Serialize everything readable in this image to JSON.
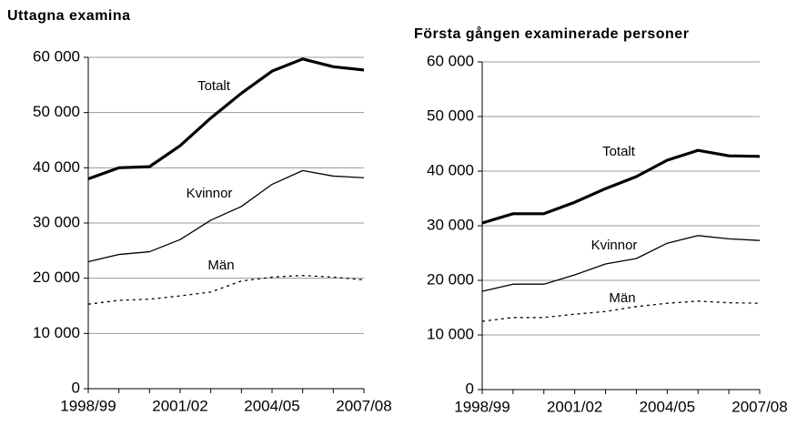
{
  "chart_data": [
    {
      "type": "line",
      "title": "Uttagna examina",
      "categories": [
        "1998/99",
        null,
        null,
        "2001/02",
        null,
        null,
        "2004/05",
        null,
        null,
        "2007/08"
      ],
      "series": [
        {
          "name": "Totalt",
          "color": "#000000",
          "values": [
            38000,
            40000,
            40200,
            44000,
            49000,
            53500,
            57500,
            59700,
            58300,
            57700
          ]
        },
        {
          "name": "Kvinnor",
          "color": "#000000",
          "values": [
            23000,
            24300,
            24800,
            27000,
            30500,
            33000,
            37000,
            39500,
            38500,
            38200
          ]
        },
        {
          "name": "Män",
          "color": "#000000",
          "values": [
            15300,
            16000,
            16200,
            16800,
            17500,
            19500,
            20200,
            20500,
            20200,
            19700
          ]
        }
      ],
      "ylim": [
        0,
        60000
      ],
      "yticks": [
        {
          "value": 0,
          "label": "0"
        },
        {
          "value": 10000,
          "label": "10 000"
        },
        {
          "value": 20000,
          "label": "20 000"
        },
        {
          "value": 30000,
          "label": "30 000"
        },
        {
          "value": 40000,
          "label": "40 000"
        },
        {
          "value": 50000,
          "label": "50 000"
        },
        {
          "value": 60000,
          "label": "60 000"
        }
      ],
      "grid": true
    },
    {
      "type": "line",
      "title": "Första gången examinerade personer",
      "categories": [
        "1998/99",
        null,
        null,
        "2001/02",
        null,
        null,
        "2004/05",
        null,
        null,
        "2007/08"
      ],
      "series": [
        {
          "name": "Totalt",
          "color": "#000000",
          "values": [
            30500,
            32200,
            32200,
            34300,
            36800,
            39000,
            42000,
            43800,
            42800,
            42700
          ]
        },
        {
          "name": "Kvinnor",
          "color": "#000000",
          "values": [
            18000,
            19300,
            19300,
            21000,
            23000,
            24000,
            26800,
            28200,
            27600,
            27300
          ]
        },
        {
          "name": "Män",
          "color": "#000000",
          "values": [
            12500,
            13200,
            13200,
            13800,
            14300,
            15200,
            15800,
            16200,
            15900,
            15800
          ]
        }
      ],
      "ylim": [
        0,
        60000
      ],
      "yticks": [
        {
          "value": 0,
          "label": "0"
        },
        {
          "value": 10000,
          "label": "10 000"
        },
        {
          "value": 20000,
          "label": "20 000"
        },
        {
          "value": 30000,
          "label": "30 000"
        },
        {
          "value": 40000,
          "label": "40 000"
        },
        {
          "value": 50000,
          "label": "50 000"
        },
        {
          "value": 60000,
          "label": "60 000"
        }
      ],
      "grid": true
    }
  ]
}
